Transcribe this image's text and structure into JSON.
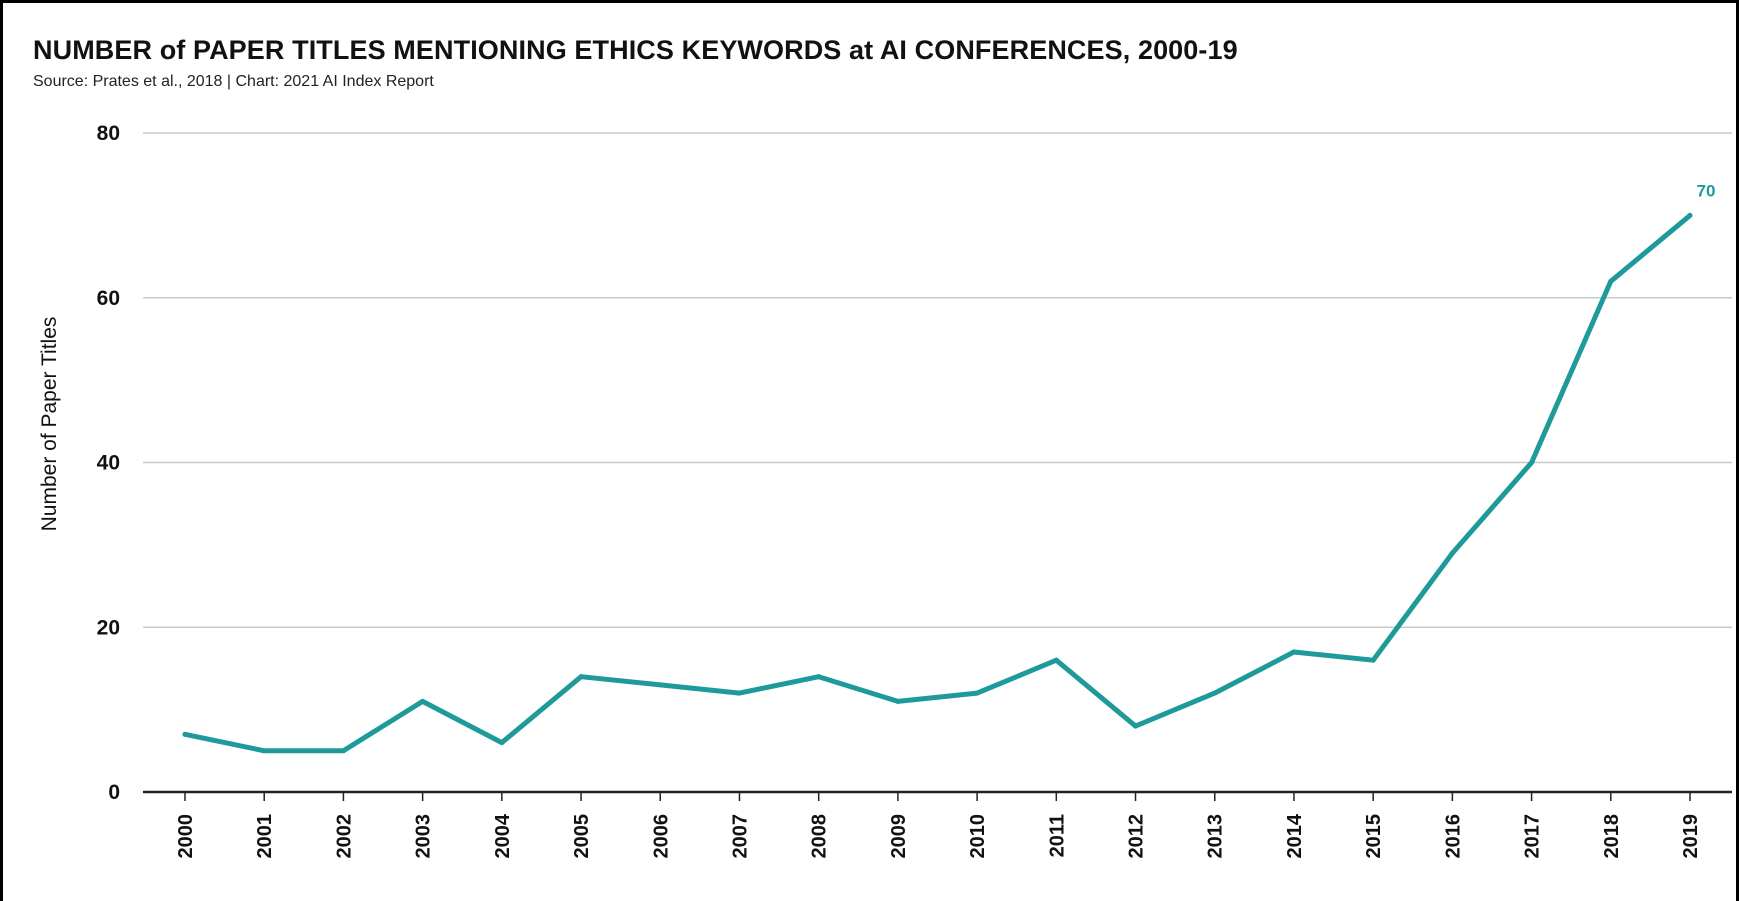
{
  "chart_data": {
    "type": "line",
    "title": "NUMBER of PAPER TITLES MENTIONING ETHICS KEYWORDS at AI CONFERENCES, 2000-19",
    "subtitle": "Source: Prates et al., 2018 | Chart: 2021 AI Index Report",
    "xlabel": "",
    "ylabel": "Number of Paper Titles",
    "categories": [
      "2000",
      "2001",
      "2002",
      "2003",
      "2004",
      "2005",
      "2006",
      "2007",
      "2008",
      "2009",
      "2010",
      "2011",
      "2012",
      "2013",
      "2014",
      "2015",
      "2016",
      "2017",
      "2018",
      "2019"
    ],
    "series": [
      {
        "values": [
          7,
          5,
          5,
          11,
          6,
          14,
          13,
          12,
          14,
          11,
          12,
          16,
          8,
          12,
          17,
          16,
          29,
          40,
          62,
          70
        ],
        "color": "#1e9a9b"
      }
    ],
    "ylim": [
      0,
      80
    ],
    "yticks": [
      "0",
      "20",
      "40",
      "60",
      "80"
    ],
    "grid": true,
    "data_labels": [
      {
        "index": 19,
        "text": "70"
      }
    ]
  }
}
